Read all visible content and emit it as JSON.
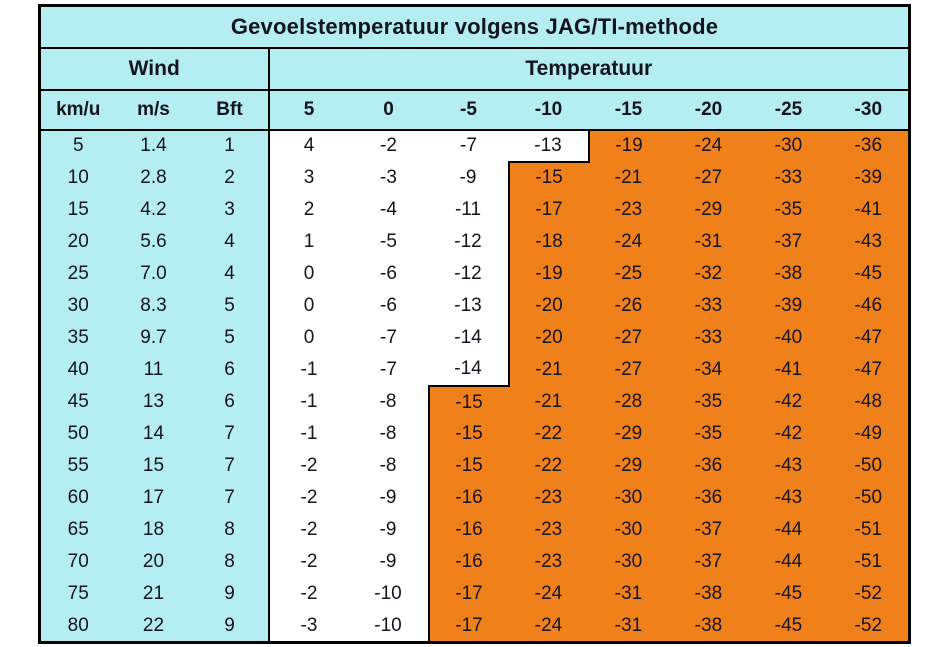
{
  "chart_data": {
    "type": "table",
    "title": "Gevoelstemperatuur volgens JAG/TI-methode",
    "groups": {
      "wind": "Wind",
      "temp": "Temperatuur"
    },
    "wind_columns": [
      "km/u",
      "m/s",
      "Bft"
    ],
    "temp_columns": [
      "5",
      "0",
      "-5",
      "-10",
      "-15",
      "-20",
      "-25",
      "-30"
    ],
    "rows": [
      {
        "wind": [
          "5",
          "1.4",
          "1"
        ],
        "temps": [
          "4",
          "-2",
          "-7",
          "-13",
          "-19",
          "-24",
          "-30",
          "-36"
        ],
        "orange_from": 4
      },
      {
        "wind": [
          "10",
          "2.8",
          "2"
        ],
        "temps": [
          "3",
          "-3",
          "-9",
          "-15",
          "-21",
          "-27",
          "-33",
          "-39"
        ],
        "orange_from": 3
      },
      {
        "wind": [
          "15",
          "4.2",
          "3"
        ],
        "temps": [
          "2",
          "-4",
          "-11",
          "-17",
          "-23",
          "-29",
          "-35",
          "-41"
        ],
        "orange_from": 3
      },
      {
        "wind": [
          "20",
          "5.6",
          "4"
        ],
        "temps": [
          "1",
          "-5",
          "-12",
          "-18",
          "-24",
          "-31",
          "-37",
          "-43"
        ],
        "orange_from": 3
      },
      {
        "wind": [
          "25",
          "7.0",
          "4"
        ],
        "temps": [
          "0",
          "-6",
          "-12",
          "-19",
          "-25",
          "-32",
          "-38",
          "-45"
        ],
        "orange_from": 3
      },
      {
        "wind": [
          "30",
          "8.3",
          "5"
        ],
        "temps": [
          "0",
          "-6",
          "-13",
          "-20",
          "-26",
          "-33",
          "-39",
          "-46"
        ],
        "orange_from": 3
      },
      {
        "wind": [
          "35",
          "9.7",
          "5"
        ],
        "temps": [
          "0",
          "-7",
          "-14",
          "-20",
          "-27",
          "-33",
          "-40",
          "-47"
        ],
        "orange_from": 3
      },
      {
        "wind": [
          "40",
          "11",
          "6"
        ],
        "temps": [
          "-1",
          "-7",
          "-14",
          "-21",
          "-27",
          "-34",
          "-41",
          "-47"
        ],
        "orange_from": 3
      },
      {
        "wind": [
          "45",
          "13",
          "6"
        ],
        "temps": [
          "-1",
          "-8",
          "-15",
          "-21",
          "-28",
          "-35",
          "-42",
          "-48"
        ],
        "orange_from": 2
      },
      {
        "wind": [
          "50",
          "14",
          "7"
        ],
        "temps": [
          "-1",
          "-8",
          "-15",
          "-22",
          "-29",
          "-35",
          "-42",
          "-49"
        ],
        "orange_from": 2
      },
      {
        "wind": [
          "55",
          "15",
          "7"
        ],
        "temps": [
          "-2",
          "-8",
          "-15",
          "-22",
          "-29",
          "-36",
          "-43",
          "-50"
        ],
        "orange_from": 2
      },
      {
        "wind": [
          "60",
          "17",
          "7"
        ],
        "temps": [
          "-2",
          "-9",
          "-16",
          "-23",
          "-30",
          "-36",
          "-43",
          "-50"
        ],
        "orange_from": 2
      },
      {
        "wind": [
          "65",
          "18",
          "8"
        ],
        "temps": [
          "-2",
          "-9",
          "-16",
          "-23",
          "-30",
          "-37",
          "-44",
          "-51"
        ],
        "orange_from": 2
      },
      {
        "wind": [
          "70",
          "20",
          "8"
        ],
        "temps": [
          "-2",
          "-9",
          "-16",
          "-23",
          "-30",
          "-37",
          "-44",
          "-51"
        ],
        "orange_from": 2
      },
      {
        "wind": [
          "75",
          "21",
          "9"
        ],
        "temps": [
          "-2",
          "-10",
          "-17",
          "-24",
          "-31",
          "-38",
          "-45",
          "-52"
        ],
        "orange_from": 2
      },
      {
        "wind": [
          "80",
          "22",
          "9"
        ],
        "temps": [
          "-3",
          "-10",
          "-17",
          "-24",
          "-31",
          "-38",
          "-45",
          "-52"
        ],
        "orange_from": 2
      }
    ],
    "colors": {
      "header_bg": "#b4edf2",
      "safe_bg": "#ffffff",
      "warning_bg": "#f0801a",
      "border": "#000000",
      "text": "#14141e"
    },
    "layout": {
      "legend": "off",
      "grid": "header lines + staircase outline between white and orange regions"
    }
  }
}
